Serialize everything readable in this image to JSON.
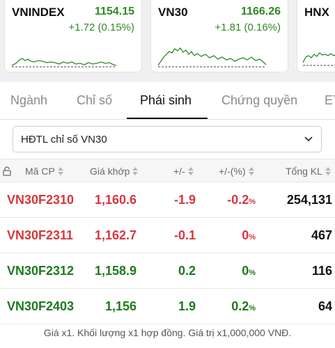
{
  "indices": [
    {
      "name": "VNINDEX",
      "price": "1154.15",
      "change": "+1.72 (0.15%)",
      "color": "#2e8a24"
    },
    {
      "name": "VN30",
      "price": "1166.26",
      "change": "+1.81 (0.16%)",
      "color": "#2e8a24"
    },
    {
      "name": "HNX",
      "price": "",
      "change": "",
      "color": "#2e8a24"
    }
  ],
  "tabs": [
    {
      "label": "Ngành",
      "active": false
    },
    {
      "label": "Chỉ số",
      "active": false
    },
    {
      "label": "Phái sinh",
      "active": true
    },
    {
      "label": "Chứng quyền",
      "active": false
    },
    {
      "label": "ET",
      "active": false
    }
  ],
  "dropdown": {
    "value": "HĐTL chỉ số VN30",
    "icon": "chevron-down-icon"
  },
  "table": {
    "headers": {
      "code": "Mã CP",
      "price": "Giá khớp",
      "change": "+/-",
      "pct_change": "+/-(%)",
      "volume": "Tổng KL"
    },
    "rows": [
      {
        "code": "VN30F2310",
        "price": "1,160.6",
        "change": "-1.9",
        "pct": "-0.2",
        "pct_unit": "%",
        "volume": "254,131",
        "trend": "down"
      },
      {
        "code": "VN30F2311",
        "price": "1,162.7",
        "change": "-0.1",
        "pct": "0",
        "pct_unit": "%",
        "volume": "467",
        "trend": "down"
      },
      {
        "code": "VN30F2312",
        "price": "1,158.9",
        "change": "0.2",
        "pct": "0",
        "pct_unit": "%",
        "volume": "116",
        "trend": "up"
      },
      {
        "code": "VN30F2403",
        "price": "1,156",
        "change": "1.9",
        "pct": "0.2",
        "pct_unit": "%",
        "volume": "64",
        "trend": "up"
      }
    ]
  },
  "footer": "Giá x1. Khối lượng x1 hợp đồng. Giá trị x1,000,000 VNĐ.",
  "colors": {
    "up": "#1e7a1e",
    "down": "#d7373f",
    "index_up": "#2e8a24"
  }
}
